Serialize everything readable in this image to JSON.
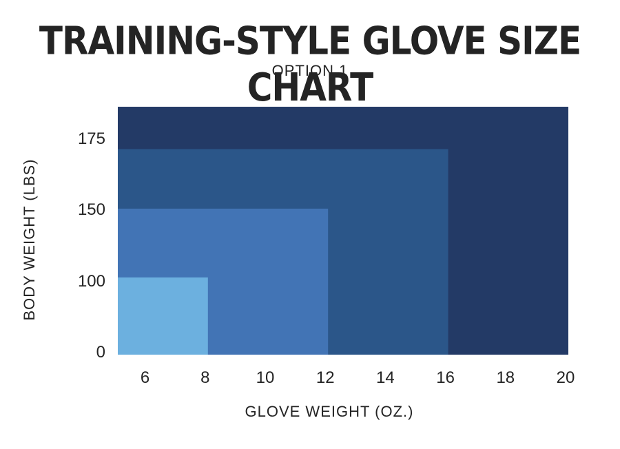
{
  "chart_data": {
    "type": "area",
    "title": "TRAINING-STYLE GLOVE SIZE CHART",
    "subtitle": "OPTION 1",
    "xlabel": "GLOVE WEIGHT (OZ.)",
    "ylabel": "BODY WEIGHT (LBS)",
    "x_ticks": [
      "6",
      "8",
      "10",
      "12",
      "14",
      "16",
      "18",
      "20"
    ],
    "y_ticks": [
      "0",
      "100",
      "150",
      "175"
    ],
    "grid": false,
    "legend": "none",
    "regions": [
      {
        "glove_max_oz": 20,
        "body_max_lbs": 185,
        "color": "#233a66"
      },
      {
        "glove_max_oz": 16,
        "body_max_lbs": 171,
        "color": "#2b5689"
      },
      {
        "glove_max_oz": 12,
        "body_max_lbs": 150,
        "color": "#4274b5"
      },
      {
        "glove_max_oz": 8,
        "body_max_lbs": 102,
        "color": "#6cb0df"
      }
    ]
  }
}
